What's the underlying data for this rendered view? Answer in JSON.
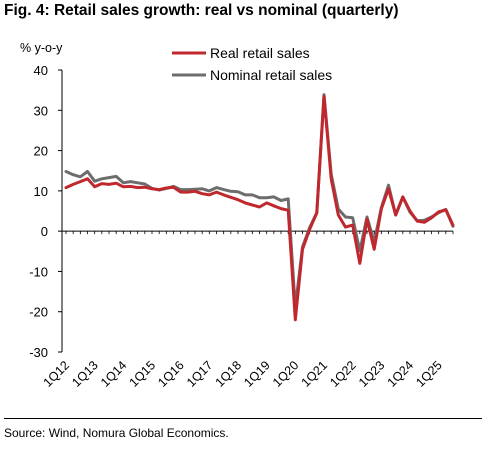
{
  "title": "Fig. 4: Retail sales growth: real vs nominal (quarterly)",
  "source": "Source: Wind, Nomura Global Economics.",
  "chart_data": {
    "type": "line",
    "ylabel": "% y-o-y",
    "xlabel": "",
    "ylim": [
      -30,
      40
    ],
    "yticks": [
      -30,
      -20,
      -10,
      0,
      10,
      20,
      30,
      40
    ],
    "grid": false,
    "legend_position": "top-center",
    "x": [
      "1Q12",
      "2Q12",
      "3Q12",
      "4Q12",
      "1Q13",
      "2Q13",
      "3Q13",
      "4Q13",
      "1Q14",
      "2Q14",
      "3Q14",
      "4Q14",
      "1Q15",
      "2Q15",
      "3Q15",
      "4Q15",
      "1Q16",
      "2Q16",
      "3Q16",
      "4Q16",
      "1Q17",
      "2Q17",
      "3Q17",
      "4Q17",
      "1Q18",
      "2Q18",
      "3Q18",
      "4Q18",
      "1Q19",
      "2Q19",
      "3Q19",
      "4Q19",
      "1Q20",
      "2Q20",
      "3Q20",
      "4Q20",
      "1Q21",
      "2Q21",
      "3Q21",
      "4Q21",
      "1Q22",
      "2Q22",
      "3Q22",
      "4Q22",
      "1Q23",
      "2Q23",
      "3Q23",
      "4Q23",
      "1Q24",
      "2Q24",
      "3Q24",
      "4Q24",
      "1Q25",
      "2Q25",
      "3Q25"
    ],
    "xtick_labels": [
      "1Q12",
      "1Q13",
      "1Q14",
      "1Q15",
      "1Q16",
      "1Q17",
      "1Q18",
      "1Q19",
      "1Q20",
      "1Q21",
      "1Q22",
      "1Q23",
      "1Q24",
      "1Q25"
    ],
    "series": [
      {
        "name": "Real retail sales",
        "color": "#c0282d",
        "values": [
          10.8,
          11.6,
          12.3,
          13.0,
          11.0,
          11.8,
          11.6,
          11.9,
          11.0,
          11.1,
          10.8,
          10.9,
          10.5,
          10.3,
          10.7,
          10.9,
          9.7,
          9.7,
          9.9,
          9.3,
          9.0,
          9.7,
          9.0,
          8.4,
          7.8,
          7.0,
          6.5,
          6.0,
          7.0,
          6.3,
          5.6,
          5.2,
          -22.0,
          -4.5,
          0.5,
          4.5,
          33.5,
          13.0,
          4.0,
          1.0,
          1.5,
          -8.0,
          3.0,
          -4.5,
          5.5,
          10.5,
          4.0,
          8.5,
          5.0,
          2.5,
          2.2,
          3.3,
          4.8,
          5.3,
          1.5
        ]
      },
      {
        "name": "Nominal retail sales",
        "color": "#6d6d6d",
        "values": [
          14.8,
          14.0,
          13.5,
          14.8,
          12.4,
          13.0,
          13.3,
          13.6,
          12.0,
          12.3,
          12.0,
          11.7,
          10.6,
          10.2,
          10.6,
          11.1,
          10.3,
          10.3,
          10.4,
          10.5,
          10.0,
          10.8,
          10.3,
          9.9,
          9.8,
          9.0,
          9.0,
          8.3,
          8.3,
          8.5,
          7.6,
          8.0,
          -19.0,
          -3.9,
          0.9,
          4.6,
          33.9,
          14.1,
          5.5,
          3.5,
          3.3,
          -4.9,
          3.5,
          -2.7,
          5.8,
          11.4,
          4.0,
          8.5,
          4.7,
          2.6,
          2.7,
          3.5,
          4.6,
          5.4,
          1.2
        ]
      }
    ]
  }
}
